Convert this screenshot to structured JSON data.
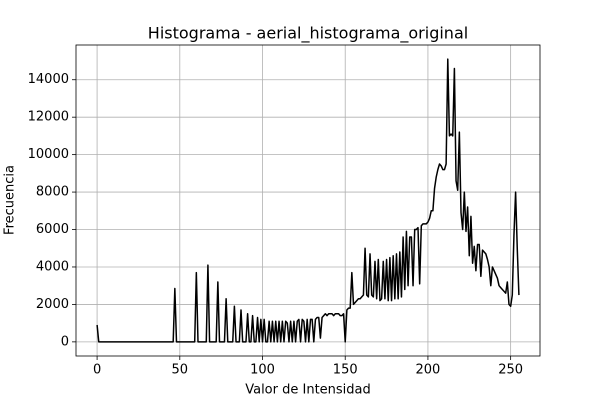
{
  "chart_data": {
    "type": "line",
    "title": "Histograma - aerial_histograma_original",
    "x_label": "Valor de Intensidad",
    "y_label": "Frecuencia",
    "color": "#000000",
    "grid": true,
    "xlim": [
      -12.75,
      267.75
    ],
    "xticks": [
      0,
      50,
      100,
      150,
      200,
      250
    ],
    "ylim": [
      -755,
      15855
    ],
    "yticks": [
      0,
      2000,
      4000,
      6000,
      8000,
      10000,
      12000,
      14000
    ],
    "x": [
      0,
      1,
      2,
      3,
      4,
      5,
      6,
      7,
      8,
      9,
      10,
      11,
      12,
      13,
      14,
      15,
      16,
      17,
      18,
      19,
      20,
      21,
      22,
      23,
      24,
      25,
      26,
      27,
      28,
      29,
      30,
      31,
      32,
      33,
      34,
      35,
      36,
      37,
      38,
      39,
      40,
      41,
      42,
      43,
      44,
      45,
      46,
      47,
      48,
      49,
      50,
      51,
      52,
      53,
      54,
      55,
      56,
      57,
      58,
      59,
      60,
      61,
      62,
      63,
      64,
      65,
      66,
      67,
      68,
      69,
      70,
      71,
      72,
      73,
      74,
      75,
      76,
      77,
      78,
      79,
      80,
      81,
      82,
      83,
      84,
      85,
      86,
      87,
      88,
      89,
      90,
      91,
      92,
      93,
      94,
      95,
      96,
      97,
      98,
      99,
      100,
      101,
      102,
      103,
      104,
      105,
      106,
      107,
      108,
      109,
      110,
      111,
      112,
      113,
      114,
      115,
      116,
      117,
      118,
      119,
      120,
      121,
      122,
      123,
      124,
      125,
      126,
      127,
      128,
      129,
      130,
      131,
      132,
      133,
      134,
      135,
      136,
      137,
      138,
      139,
      140,
      141,
      142,
      143,
      144,
      145,
      146,
      147,
      148,
      149,
      150,
      151,
      152,
      153,
      154,
      155,
      156,
      157,
      158,
      159,
      160,
      161,
      162,
      163,
      164,
      165,
      166,
      167,
      168,
      169,
      170,
      171,
      172,
      173,
      174,
      175,
      176,
      177,
      178,
      179,
      180,
      181,
      182,
      183,
      184,
      185,
      186,
      187,
      188,
      189,
      190,
      191,
      192,
      193,
      194,
      195,
      196,
      197,
      198,
      199,
      200,
      201,
      202,
      203,
      204,
      205,
      206,
      207,
      208,
      209,
      210,
      211,
      212,
      213,
      214,
      215,
      216,
      217,
      218,
      219,
      220,
      221,
      222,
      223,
      224,
      225,
      226,
      227,
      228,
      229,
      230,
      231,
      232,
      233,
      234,
      235,
      236,
      237,
      238,
      239,
      240,
      241,
      242,
      243,
      244,
      245,
      246,
      247,
      248,
      249,
      250,
      251,
      252,
      253,
      254,
      255
    ],
    "values": [
      900,
      0,
      0,
      0,
      0,
      0,
      0,
      0,
      0,
      0,
      0,
      0,
      0,
      0,
      0,
      0,
      0,
      0,
      0,
      0,
      0,
      0,
      0,
      0,
      0,
      0,
      0,
      0,
      0,
      0,
      0,
      0,
      0,
      0,
      0,
      0,
      0,
      0,
      0,
      0,
      0,
      0,
      0,
      0,
      0,
      0,
      0,
      2850,
      0,
      0,
      0,
      0,
      0,
      0,
      0,
      0,
      0,
      0,
      0,
      0,
      3700,
      0,
      0,
      0,
      0,
      0,
      0,
      4100,
      0,
      0,
      0,
      0,
      0,
      3200,
      0,
      0,
      0,
      0,
      2300,
      0,
      0,
      0,
      0,
      1900,
      0,
      0,
      0,
      1700,
      0,
      0,
      0,
      1500,
      0,
      0,
      1400,
      0,
      0,
      1300,
      0,
      1200,
      0,
      1200,
      0,
      0,
      1100,
      0,
      1100,
      0,
      1100,
      0,
      1100,
      0,
      1100,
      0,
      1100,
      1000,
      0,
      1100,
      0,
      1100,
      0,
      1100,
      1200,
      0,
      1200,
      1100,
      0,
      1200,
      0,
      1200,
      1200,
      0,
      1200,
      1300,
      1300,
      200,
      1300,
      1400,
      1500,
      1400,
      1500,
      1500,
      1500,
      1400,
      1500,
      1500,
      1500,
      1400,
      1400,
      1500,
      0,
      1700,
      1800,
      1800,
      3700,
      2000,
      2100,
      2200,
      2300,
      2300,
      2400,
      2500,
      5000,
      2500,
      2400,
      4700,
      2500,
      2400,
      4300,
      2300,
      4400,
      2200,
      2300,
      4300,
      2300,
      4400,
      2200,
      4500,
      2200,
      4600,
      2300,
      4700,
      2300,
      4800,
      2400,
      5600,
      2800,
      5900,
      3000,
      5600,
      5600,
      3000,
      6000,
      6000,
      6100,
      3100,
      6200,
      6300,
      6300,
      6300,
      6400,
      6600,
      7000,
      7000,
      8200,
      8800,
      9200,
      9500,
      9400,
      9200,
      9200,
      9500,
      15100,
      11000,
      11100,
      11000,
      14600,
      8600,
      8100,
      11200,
      6900,
      6000,
      8000,
      5900,
      7200,
      4600,
      6700,
      4200,
      5100,
      3800,
      5200,
      5200,
      3500,
      4900,
      4800,
      4700,
      4400,
      4000,
      3000,
      4000,
      3800,
      3600,
      3400,
      3000,
      2900,
      2800,
      2700,
      2600,
      3200,
      2000,
      1900,
      2500,
      5700,
      8000,
      5000,
      2500
    ]
  }
}
